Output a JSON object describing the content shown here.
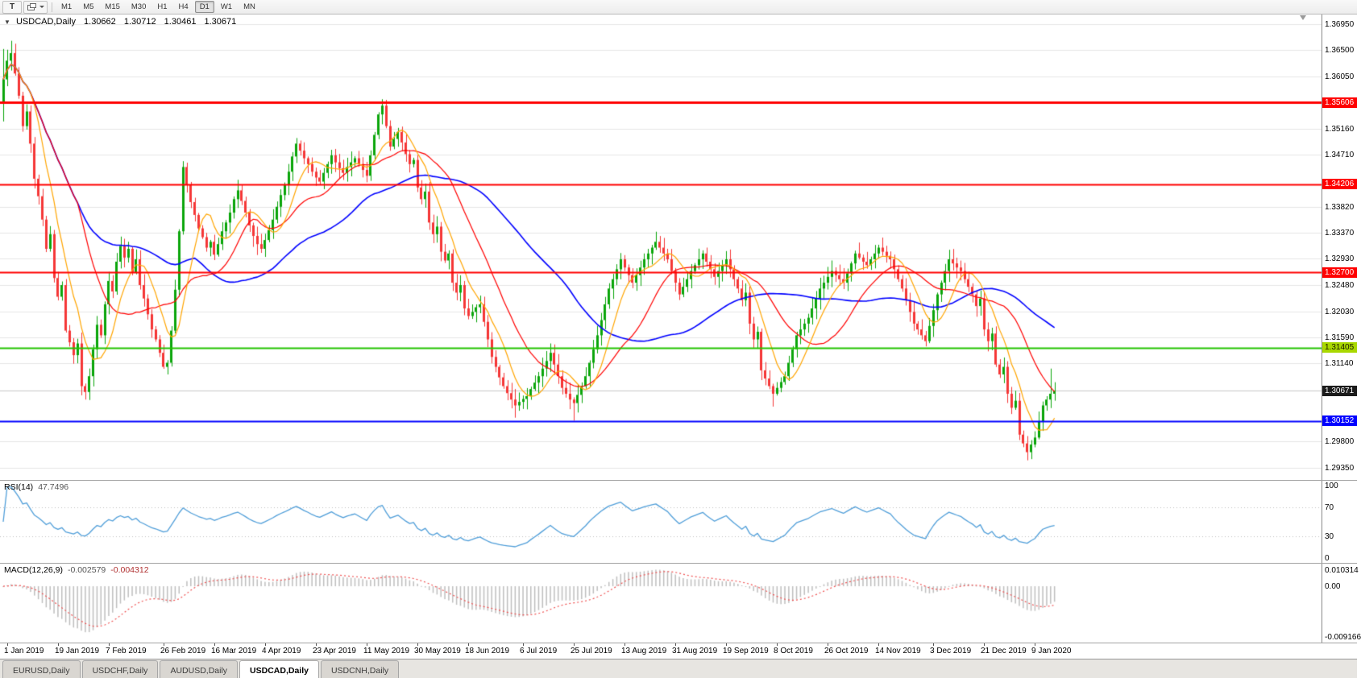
{
  "toolbar": {
    "tool_button": "T",
    "timeframes": [
      {
        "label": "M1",
        "active": false
      },
      {
        "label": "M5",
        "active": false
      },
      {
        "label": "M15",
        "active": false
      },
      {
        "label": "M30",
        "active": false
      },
      {
        "label": "H1",
        "active": false
      },
      {
        "label": "H4",
        "active": false
      },
      {
        "label": "D1",
        "active": true
      },
      {
        "label": "W1",
        "active": false
      },
      {
        "label": "MN",
        "active": false
      }
    ]
  },
  "chart": {
    "collapse_icon": "▼",
    "symbol_title": "USDCAD,Daily",
    "ohlc": {
      "open": "1.30662",
      "high": "1.30712",
      "low": "1.30461",
      "close": "1.30671"
    },
    "colors": {
      "bull": "#0aa50a",
      "bear": "#f53636",
      "ma_fast": "#ffa500",
      "ma_mid": "#ff0000",
      "ma_slow": "#0000ff",
      "grid": "#e6e6e6",
      "current_line": "#c8c8c8"
    },
    "price_axis_labels": [
      {
        "text": "1.36950",
        "price": 1.3695
      },
      {
        "text": "1.36500",
        "price": 1.365
      },
      {
        "text": "1.36050",
        "price": 1.3605
      },
      {
        "text": "1.35160",
        "price": 1.3516
      },
      {
        "text": "1.34710",
        "price": 1.3471
      },
      {
        "text": "1.33820",
        "price": 1.3382
      },
      {
        "text": "1.33370",
        "price": 1.3337
      },
      {
        "text": "1.32930",
        "price": 1.3293
      },
      {
        "text": "1.32480",
        "price": 1.3248
      },
      {
        "text": "1.32030",
        "price": 1.3203
      },
      {
        "text": "1.31590",
        "price": 1.3159
      },
      {
        "text": "1.31140",
        "price": 1.3114
      },
      {
        "text": "1.29800",
        "price": 1.298
      },
      {
        "text": "1.29350",
        "price": 1.2935
      }
    ],
    "levels": [
      {
        "price": 1.35606,
        "label": "1.35606",
        "color": "#ff0000",
        "width": 3,
        "tag_bg": "#ff0000",
        "tag_fg": "#ffffff"
      },
      {
        "price": 1.34206,
        "label": "1.34206",
        "color": "#ff0000",
        "width": 2,
        "tag_bg": "#ff0000",
        "tag_fg": "#ffffff"
      },
      {
        "price": 1.327,
        "label": "1.32700",
        "color": "#ff0000",
        "width": 2,
        "tag_bg": "#ff0000",
        "tag_fg": "#ffffff"
      },
      {
        "price": 1.31405,
        "label": "1.31405",
        "color": "#22c400",
        "width": 2,
        "tag_bg": "#a9d800",
        "tag_fg": "#1a1a00"
      },
      {
        "price": 1.30152,
        "label": "1.30152",
        "color": "#0000ff",
        "width": 2,
        "tag_bg": "#0000ff",
        "tag_fg": "#ffffff"
      }
    ],
    "current_price": {
      "label": "1.30671",
      "price": 1.30671,
      "tag_bg": "#1b1b1b",
      "tag_fg": "#ffffff"
    }
  },
  "chart_data": {
    "type": "candlestick",
    "symbol": "USDCAD",
    "timeframe": "Daily",
    "ylim": [
      1.292,
      1.37
    ],
    "first_open": 1.356,
    "closes": [
      1.36,
      1.3632,
      1.3645,
      1.361,
      1.3572,
      1.352,
      1.3545,
      1.349,
      1.343,
      1.34,
      1.336,
      1.331,
      1.3335,
      1.326,
      1.3228,
      1.3248,
      1.317,
      1.315,
      1.3128,
      1.3148,
      1.3075,
      1.3065,
      1.3092,
      1.3138,
      1.318,
      1.3162,
      1.3215,
      1.3255,
      1.3237,
      1.3288,
      1.3315,
      1.3295,
      1.331,
      1.327,
      1.3292,
      1.3248,
      1.3225,
      1.3198,
      1.3172,
      1.3155,
      1.3132,
      1.3108,
      1.3115,
      1.317,
      1.324,
      1.334,
      1.345,
      1.342,
      1.339,
      1.3368,
      1.3345,
      1.333,
      1.3312,
      1.3322,
      1.33,
      1.3318,
      1.334,
      1.3355,
      1.3372,
      1.3395,
      1.341,
      1.3392,
      1.3372,
      1.335,
      1.3332,
      1.3318,
      1.331,
      1.3325,
      1.3342,
      1.336,
      1.3382,
      1.3402,
      1.342,
      1.3442,
      1.3468,
      1.349,
      1.3478,
      1.3465,
      1.3455,
      1.3442,
      1.3432,
      1.3425,
      1.344,
      1.3455,
      1.347,
      1.3458,
      1.3448,
      1.344,
      1.345,
      1.3458,
      1.3465,
      1.3455,
      1.3445,
      1.3435,
      1.347,
      1.3505,
      1.354,
      1.3555,
      1.352,
      1.3485,
      1.3498,
      1.351,
      1.3492,
      1.3472,
      1.3455,
      1.3462,
      1.3415,
      1.3395,
      1.3408,
      1.3355,
      1.3335,
      1.3348,
      1.3305,
      1.329,
      1.3302,
      1.3252,
      1.3235,
      1.3248,
      1.3208,
      1.3195,
      1.3202,
      1.321,
      1.3215,
      1.3185,
      1.3155,
      1.3125,
      1.3108,
      1.309,
      1.3075,
      1.3063,
      1.3052,
      1.3042,
      1.3048,
      1.3053,
      1.3058,
      1.307,
      1.3081,
      1.3092,
      1.3105,
      1.3118,
      1.3132,
      1.3112,
      1.3092,
      1.3072,
      1.3062,
      1.3052,
      1.3046,
      1.306,
      1.3075,
      1.3092,
      1.3115,
      1.3138,
      1.3162,
      1.3188,
      1.3215,
      1.3242,
      1.3258,
      1.3275,
      1.3292,
      1.3278,
      1.3265,
      1.3252,
      1.3265,
      1.3278,
      1.3292,
      1.3302,
      1.3312,
      1.3322,
      1.3312,
      1.3302,
      1.3292,
      1.3272,
      1.3252,
      1.3232,
      1.3245,
      1.3258,
      1.3272,
      1.3282,
      1.3292,
      1.3302,
      1.3288,
      1.3275,
      1.3262,
      1.3272,
      1.3282,
      1.3292,
      1.3275,
      1.3258,
      1.3242,
      1.3222,
      1.3235,
      1.3182,
      1.3155,
      1.3168,
      1.3102,
      1.3088,
      1.3075,
      1.3062,
      1.3072,
      1.3082,
      1.3092,
      1.3115,
      1.3138,
      1.3162,
      1.3172,
      1.3182,
      1.3192,
      1.3208,
      1.3225,
      1.3242,
      1.3252,
      1.3262,
      1.3272,
      1.3265,
      1.3258,
      1.3252,
      1.3268,
      1.3285,
      1.3302,
      1.3295,
      1.3288,
      1.3282,
      1.3292,
      1.3302,
      1.3312,
      1.3305,
      1.3298,
      1.3292,
      1.3275,
      1.3258,
      1.3242,
      1.3222,
      1.3202,
      1.3182,
      1.3172,
      1.3162,
      1.3152,
      1.3178,
      1.3205,
      1.3232,
      1.3252,
      1.3272,
      1.3292,
      1.3285,
      1.3278,
      1.3272,
      1.3258,
      1.3245,
      1.3232,
      1.3212,
      1.3225,
      1.3172,
      1.3152,
      1.3165,
      1.3112,
      1.3095,
      1.3108,
      1.3062,
      1.3038,
      1.305,
      1.2992,
      1.2977,
      1.2962,
      1.2975,
      1.2987,
      1.3015,
      1.3042,
      1.3052,
      1.3062,
      1.3067
    ],
    "wick_overrides": {
      "0": {
        "high": 1.3652,
        "low": 1.3528
      },
      "2": {
        "high": 1.3666
      },
      "21": {
        "low": 1.3052
      },
      "42": {
        "low": 1.3095
      },
      "97": {
        "high": 1.3566
      },
      "131": {
        "low": 1.3021
      },
      "146": {
        "low": 1.3016
      },
      "197": {
        "low": 1.304
      },
      "262": {
        "low": 1.2948
      },
      "268": {
        "high": 1.3105
      }
    },
    "x_labels": [
      "1 Jan 2019",
      "19 Jan 2019",
      "7 Feb 2019",
      "26 Feb 2019",
      "16 Mar 2019",
      "4 Apr 2019",
      "23 Apr 2019",
      "11 May 2019",
      "30 May 2019",
      "18 Jun 2019",
      "6 Jul 2019",
      "25 Jul 2019",
      "13 Aug 2019",
      "31 Aug 2019",
      "19 Sep 2019",
      "8 Oct 2019",
      "26 Oct 2019",
      "14 Nov 2019",
      "3 Dec 2019",
      "21 Dec 2019",
      "9 Jan 2020"
    ]
  },
  "rsi": {
    "name": "RSI(14)",
    "value": "47.7496",
    "period": 14,
    "axis": [
      "100",
      "70",
      "30",
      "0"
    ],
    "upper": 70,
    "lower": 30,
    "line_color": "#4f9ed9",
    "level_color": "#c0c0c0"
  },
  "macd": {
    "name": "MACD(12,26,9)",
    "values": [
      "-0.002579",
      "-0.004312"
    ],
    "fast": 12,
    "slow": 26,
    "signal": 9,
    "axis_top": "0.010314",
    "axis_zero": "0.00",
    "axis_bottom": "-0.009166",
    "hist_color": "#bfbfbf",
    "signal_color": "#f05050"
  },
  "tabs": [
    {
      "label": "EURUSD,Daily",
      "active": false
    },
    {
      "label": "USDCHF,Daily",
      "active": false
    },
    {
      "label": "AUDUSD,Daily",
      "active": false
    },
    {
      "label": "USDCAD,Daily",
      "active": true
    },
    {
      "label": "USDCNH,Daily",
      "active": false
    }
  ]
}
